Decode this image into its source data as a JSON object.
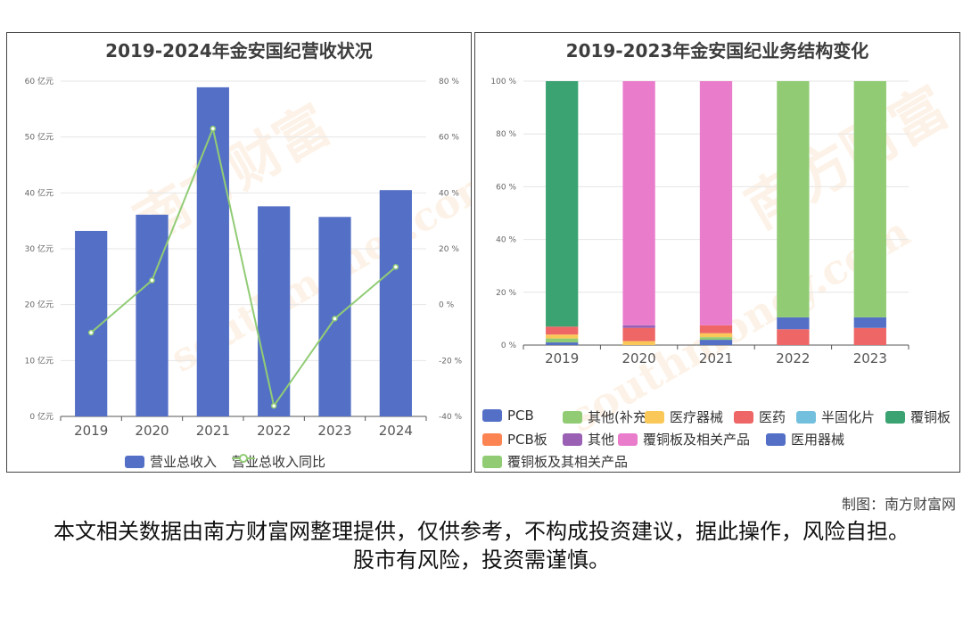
{
  "credit": "制图：南方财富网",
  "disclaimer": "本文相关数据由南方财富网整理提供，仅供参考，不构成投资建议，据此操作，风险自担。股市有风险，投资需谨慎。",
  "watermark": {
    "brand": "南方财富网",
    "site": "southmoney.com"
  },
  "chart_data": [
    {
      "type": "bar",
      "title": "2019-2024年金安国纪营收状况",
      "categories": [
        "2019",
        "2020",
        "2021",
        "2022",
        "2023",
        "2024"
      ],
      "y_left": {
        "ticks": [
          "0 亿元",
          "10 亿元",
          "20 亿元",
          "30 亿元",
          "40 亿元",
          "50 亿元",
          "60 亿元"
        ],
        "ylim": [
          0,
          60
        ],
        "unit": "亿元"
      },
      "y_right": {
        "ticks": [
          "-40 %",
          "-20 %",
          "0 %",
          "20 %",
          "40 %",
          "60 %",
          "80 %"
        ],
        "ylim": [
          -40,
          80
        ],
        "unit": "%"
      },
      "grid": true,
      "legend_position": "bottom",
      "series": [
        {
          "name": "营业总收入",
          "kind": "bar",
          "axis": "left",
          "color": "#5470c6",
          "values": [
            33.2,
            36.1,
            58.9,
            37.6,
            35.7,
            40.5
          ]
        },
        {
          "name": "营业总收入同比",
          "kind": "line",
          "axis": "right",
          "color": "#91cc75",
          "values": [
            -10.0,
            8.7,
            63.0,
            -36.2,
            -5.0,
            13.5
          ]
        }
      ]
    },
    {
      "type": "bar",
      "stacked": true,
      "title": "2019-2023年金安国纪业务结构变化",
      "categories": [
        "2019",
        "2020",
        "2021",
        "2022",
        "2023"
      ],
      "y": {
        "ticks": [
          "0 %",
          "20 %",
          "40 %",
          "60 %",
          "80 %",
          "100 %"
        ],
        "ylim": [
          0,
          100
        ],
        "unit": "%"
      },
      "grid": true,
      "legend_position": "bottom",
      "series": [
        {
          "name": "PCB",
          "color": "#5470c6",
          "values": [
            1.0,
            0,
            2.0,
            0,
            0
          ]
        },
        {
          "name": "其他(补充)",
          "color": "#91cc75",
          "values": [
            1.5,
            0,
            1.0,
            0,
            0
          ]
        },
        {
          "name": "医疗器械",
          "color": "#fac858",
          "values": [
            1.5,
            1.5,
            1.5,
            0,
            0
          ]
        },
        {
          "name": "医药",
          "color": "#ee6666",
          "values": [
            3.0,
            5.0,
            3.0,
            6.0,
            6.5
          ]
        },
        {
          "name": "半固化片",
          "color": "#73c0de",
          "values": [
            0,
            0,
            0,
            0,
            0
          ]
        },
        {
          "name": "覆铜板",
          "color": "#3ba272",
          "values": [
            93.0,
            0,
            0,
            0,
            0
          ]
        },
        {
          "name": "PCB板",
          "color": "#fc8452",
          "values": [
            0,
            0,
            0,
            0,
            0
          ]
        },
        {
          "name": "其他",
          "color": "#9a60b4",
          "values": [
            0,
            1.0,
            0,
            0,
            0
          ]
        },
        {
          "name": "覆铜板及相关产品",
          "color": "#ea7ccc",
          "values": [
            0,
            92.5,
            92.5,
            0,
            0
          ]
        },
        {
          "name": "医用器械",
          "color": "#5470c6",
          "values": [
            0,
            0,
            0,
            4.5,
            4.0
          ]
        },
        {
          "name": "覆铜板及其相关产品",
          "color": "#91cc75",
          "values": [
            0,
            0,
            0,
            89.5,
            89.5
          ]
        }
      ],
      "extra_segments": [
        {
          "category": "2022",
          "name": "PCB",
          "value": 0
        },
        {
          "category": "2023",
          "name": "其他(补充)",
          "value": 0
        }
      ]
    }
  ]
}
